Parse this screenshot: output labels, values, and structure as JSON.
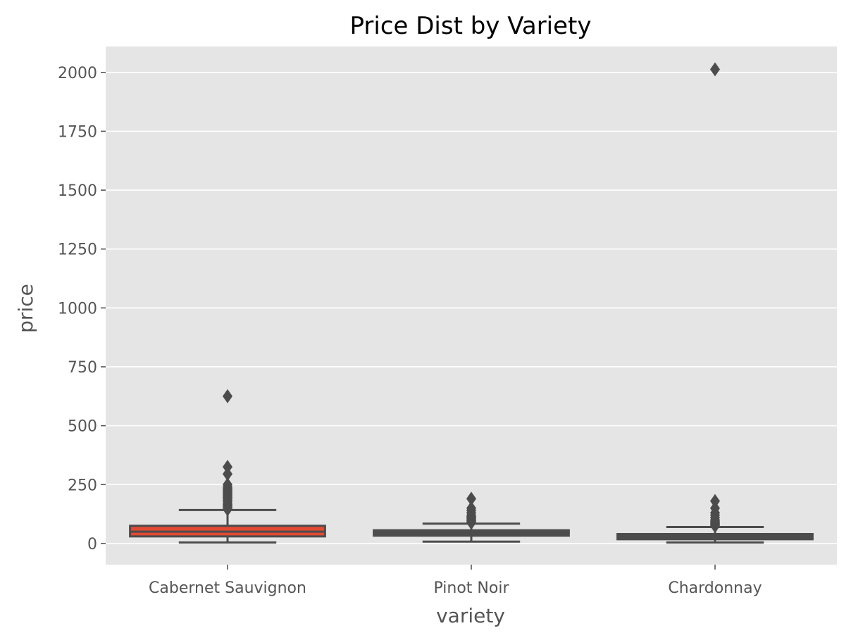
{
  "chart_data": {
    "type": "box",
    "title": "Price Dist by Variety",
    "xlabel": "variety",
    "ylabel": "price",
    "ylim": [
      -90,
      2110
    ],
    "yticks": [
      0,
      250,
      500,
      750,
      1000,
      1250,
      1500,
      1750,
      2000
    ],
    "ytick_labels": [
      "0",
      "250",
      "500",
      "750",
      "1000",
      "1250",
      "1500",
      "1750",
      "2000"
    ],
    "grid": true,
    "categories": [
      "Cabernet Sauvignon",
      "Pinot Noir",
      "Chardonnay"
    ],
    "boxes": [
      {
        "category": "Cabernet Sauvignon",
        "whisker_low": 4,
        "q1": 30,
        "median": 50,
        "q3": 75,
        "whisker_high": 142,
        "outliers": [
          145,
          150,
          155,
          160,
          165,
          170,
          178,
          185,
          190,
          195,
          200,
          205,
          210,
          215,
          220,
          225,
          230,
          235,
          240,
          250,
          295,
          325,
          625
        ]
      },
      {
        "category": "Pinot Noir",
        "whisker_low": 8,
        "q1": 33,
        "median": 45,
        "q3": 56,
        "whisker_high": 84,
        "outliers": [
          88,
          92,
          96,
          100,
          105,
          110,
          115,
          120,
          130,
          140,
          150,
          190
        ]
      },
      {
        "category": "Chardonnay",
        "whisker_low": 4,
        "q1": 18,
        "median": 27,
        "q3": 40,
        "whisker_high": 70,
        "outliers": [
          74,
          78,
          82,
          86,
          90,
          95,
          100,
          110,
          120,
          130,
          150,
          180,
          2013
        ]
      }
    ],
    "colors": {
      "panel_background": "#e5e5e5",
      "grid": "#ffffff",
      "box_fill": [
        "#e24a33",
        "#4d4d4d",
        "#4d4d4d"
      ],
      "line": "#4c4c4c"
    }
  }
}
